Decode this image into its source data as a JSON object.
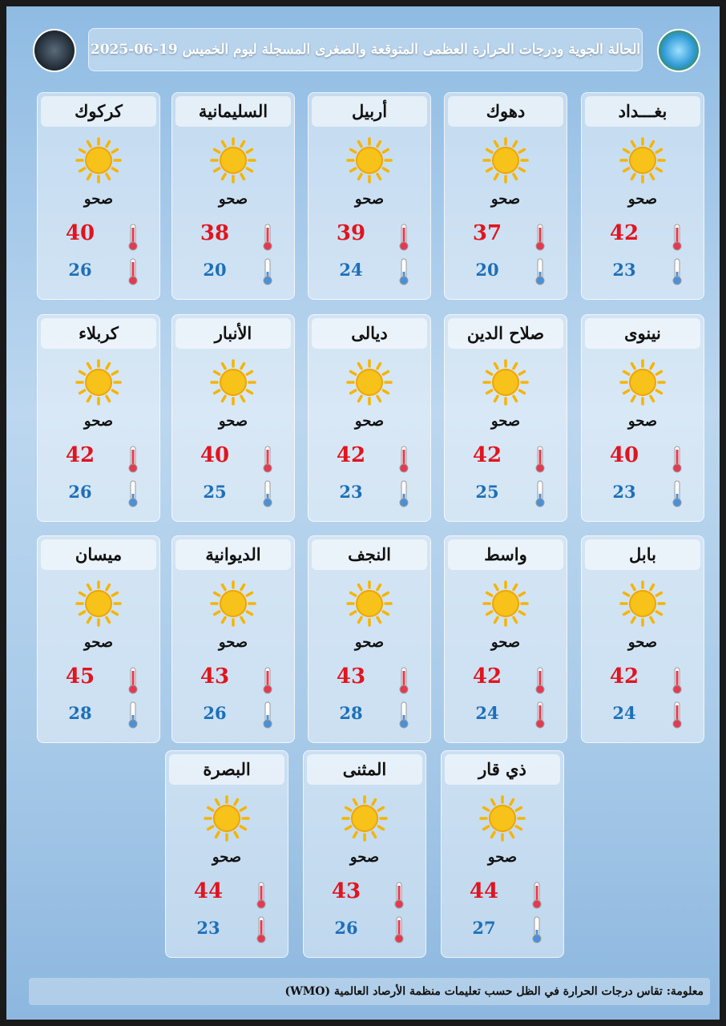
{
  "header": {
    "title": "الحالة الجوية ودرجات الحرارة العظمى المتوقعة والصغرى المسجلة ليوم الخميس 19-06-2025"
  },
  "cities": [
    {
      "name": "بغـــداد",
      "condition": "صحو",
      "max": 42,
      "min": 23,
      "min_color": "#4a90d9"
    },
    {
      "name": "دهوك",
      "condition": "صحو",
      "max": 37,
      "min": 20,
      "min_color": "#4a90d9"
    },
    {
      "name": "أربيل",
      "condition": "صحو",
      "max": 39,
      "min": 24,
      "min_color": "#4a90d9"
    },
    {
      "name": "السليمانية",
      "condition": "صحو",
      "max": 38,
      "min": 20,
      "min_color": "#4a90d9"
    },
    {
      "name": "كركوك",
      "condition": "صحو",
      "max": 40,
      "min": 26,
      "min_color": "#e53950"
    },
    {
      "name": "نينوى",
      "condition": "صحو",
      "max": 40,
      "min": 23,
      "min_color": "#4a90d9"
    },
    {
      "name": "صلاح الدين",
      "condition": "صحو",
      "max": 42,
      "min": 25,
      "min_color": "#4a90d9"
    },
    {
      "name": "ديالى",
      "condition": "صحو",
      "max": 42,
      "min": 23,
      "min_color": "#4a90d9"
    },
    {
      "name": "الأنبار",
      "condition": "صحو",
      "max": 40,
      "min": 25,
      "min_color": "#4a90d9"
    },
    {
      "name": "كربلاء",
      "condition": "صحو",
      "max": 42,
      "min": 26,
      "min_color": "#4a90d9"
    },
    {
      "name": "بابل",
      "condition": "صحو",
      "max": 42,
      "min": 24,
      "min_color": "#e53950"
    },
    {
      "name": "واسط",
      "condition": "صحو",
      "max": 42,
      "min": 24,
      "min_color": "#e53950"
    },
    {
      "name": "النجف",
      "condition": "صحو",
      "max": 43,
      "min": 28,
      "min_color": "#4a90d9"
    },
    {
      "name": "الديوانية",
      "condition": "صحو",
      "max": 43,
      "min": 26,
      "min_color": "#4a90d9"
    },
    {
      "name": "ميسان",
      "condition": "صحو",
      "max": 45,
      "min": 28,
      "min_color": "#4a90d9"
    },
    {
      "name": "ذي قار",
      "condition": "صحو",
      "max": 44,
      "min": 27,
      "min_color": "#4a90d9"
    },
    {
      "name": "المثنى",
      "condition": "صحو",
      "max": 43,
      "min": 26,
      "min_color": "#e53950"
    },
    {
      "name": "البصرة",
      "condition": "صحو",
      "max": 44,
      "min": 23,
      "min_color": "#e53950"
    }
  ],
  "footer": {
    "note": "معلومة: تقاس درجات الحرارة في الظل حسب تعليمات منظمة الأرصاد العالمية (WMO)"
  }
}
